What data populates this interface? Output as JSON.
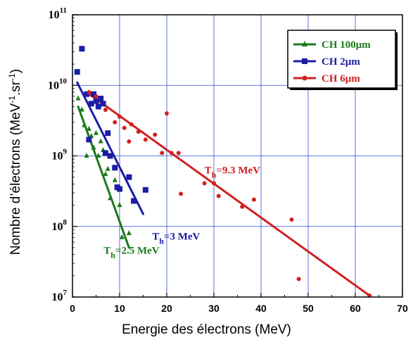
{
  "chart_data": {
    "type": "scatter",
    "xlabel": "Energie des électrons (MeV)",
    "ylabel_parts": [
      "Nombre d’électrons (MeV",
      "-1",
      ".sr",
      "-1",
      ")"
    ],
    "x_range": [
      0,
      70
    ],
    "x_ticks": [
      0,
      10,
      20,
      30,
      40,
      50,
      60,
      70
    ],
    "y_scale": "log",
    "y_range": [
      10000000,
      100000000000
    ],
    "y_ticks": [
      {
        "value": 10000000,
        "base": "10",
        "exp": "7"
      },
      {
        "value": 100000000,
        "base": "10",
        "exp": "8"
      },
      {
        "value": 1000000000,
        "base": "10",
        "exp": "9"
      },
      {
        "value": 10000000000,
        "base": "10",
        "exp": "10"
      },
      {
        "value": 100000000000,
        "base": "10",
        "exp": "11"
      }
    ],
    "grid": true,
    "legend_position": "top-right",
    "series": [
      {
        "name": "CH 100μm",
        "color": "#1a7a1a",
        "marker": "triangle",
        "points": [
          [
            1.2,
            6500000000.0
          ],
          [
            2.0,
            4500000000.0
          ],
          [
            2.5,
            2700000000.0
          ],
          [
            3.0,
            1000000000.0
          ],
          [
            3.5,
            2400000000.0
          ],
          [
            4.0,
            1900000000.0
          ],
          [
            4.5,
            1300000000.0
          ],
          [
            5.0,
            2100000000.0
          ],
          [
            5.5,
            1000000000.0
          ],
          [
            6.0,
            1600000000.0
          ],
          [
            6.5,
            1200000000.0
          ],
          [
            7.0,
            550000000.0
          ],
          [
            7.5,
            650000000.0
          ],
          [
            8.0,
            250000000.0
          ],
          [
            9.0,
            450000000.0
          ],
          [
            10.0,
            200000000.0
          ],
          [
            10.5,
            70000000.0
          ],
          [
            12.0,
            80000000.0
          ]
        ],
        "fit": [
          [
            1.2,
            5000000000.0
          ],
          [
            12.0,
            50000000.0
          ]
        ],
        "annotation": {
          "main": "T",
          "sub": "h",
          "rest": "=2.5 MeV",
          "at": [
            6.6,
            41000000.0
          ]
        }
      },
      {
        "name": "CH 2μm",
        "color": "#1c1ca6",
        "marker": "square",
        "points": [
          [
            1.0,
            15500000000.0
          ],
          [
            2.0,
            33000000000.0
          ],
          [
            3.0,
            7500000000.0
          ],
          [
            3.5,
            1700000000.0
          ],
          [
            4.0,
            5500000000.0
          ],
          [
            4.5,
            7500000000.0
          ],
          [
            5.0,
            6000000000.0
          ],
          [
            5.5,
            5000000000.0
          ],
          [
            6.0,
            6500000000.0
          ],
          [
            6.5,
            5500000000.0
          ],
          [
            7.0,
            1100000000.0
          ],
          [
            7.5,
            2100000000.0
          ],
          [
            8.0,
            1000000000.0
          ],
          [
            9.0,
            680000000.0
          ],
          [
            9.5,
            360000000.0
          ],
          [
            10.0,
            340000000.0
          ],
          [
            12.0,
            500000000.0
          ],
          [
            13.0,
            230000000.0
          ],
          [
            15.5,
            330000000.0
          ]
        ],
        "fit": [
          [
            1.0,
            11000000000.0
          ],
          [
            15.0,
            150000000.0
          ]
        ],
        "annotation": {
          "main": "T",
          "sub": "h",
          "rest": "=3 MeV",
          "at": [
            16.9,
            65000000.0
          ]
        }
      },
      {
        "name": "CH 6μm",
        "color": "#d12020",
        "marker": "circle",
        "points": [
          [
            3.5,
            8000000000.0
          ],
          [
            5.0,
            7000000000.0
          ],
          [
            7.0,
            4500000000.0
          ],
          [
            9.0,
            3000000000.0
          ],
          [
            10.0,
            3600000000.0
          ],
          [
            11.0,
            2500000000.0
          ],
          [
            12.0,
            1600000000.0
          ],
          [
            12.5,
            2800000000.0
          ],
          [
            14.0,
            2200000000.0
          ],
          [
            15.5,
            1700000000.0
          ],
          [
            17.5,
            2000000000.0
          ],
          [
            19.0,
            1100000000.0
          ],
          [
            20.0,
            4000000000.0
          ],
          [
            21.0,
            1100000000.0
          ],
          [
            22.5,
            1100000000.0
          ],
          [
            23.0,
            290000000.0
          ],
          [
            28.0,
            410000000.0
          ],
          [
            30.0,
            410000000.0
          ],
          [
            31.0,
            270000000.0
          ],
          [
            36.0,
            190000000.0
          ],
          [
            38.5,
            240000000.0
          ],
          [
            46.5,
            125000000.0
          ],
          [
            48.0,
            18000000.0
          ],
          [
            63.0,
            10500000.0
          ]
        ],
        "fit": [
          [
            3.0,
            8000000000.0
          ],
          [
            63.0,
            10500000.0
          ]
        ],
        "annotation": {
          "main": "T",
          "sub": "h",
          "rest": "=9.3 MeV",
          "at": [
            28.0,
            560000000.0
          ]
        }
      }
    ]
  }
}
